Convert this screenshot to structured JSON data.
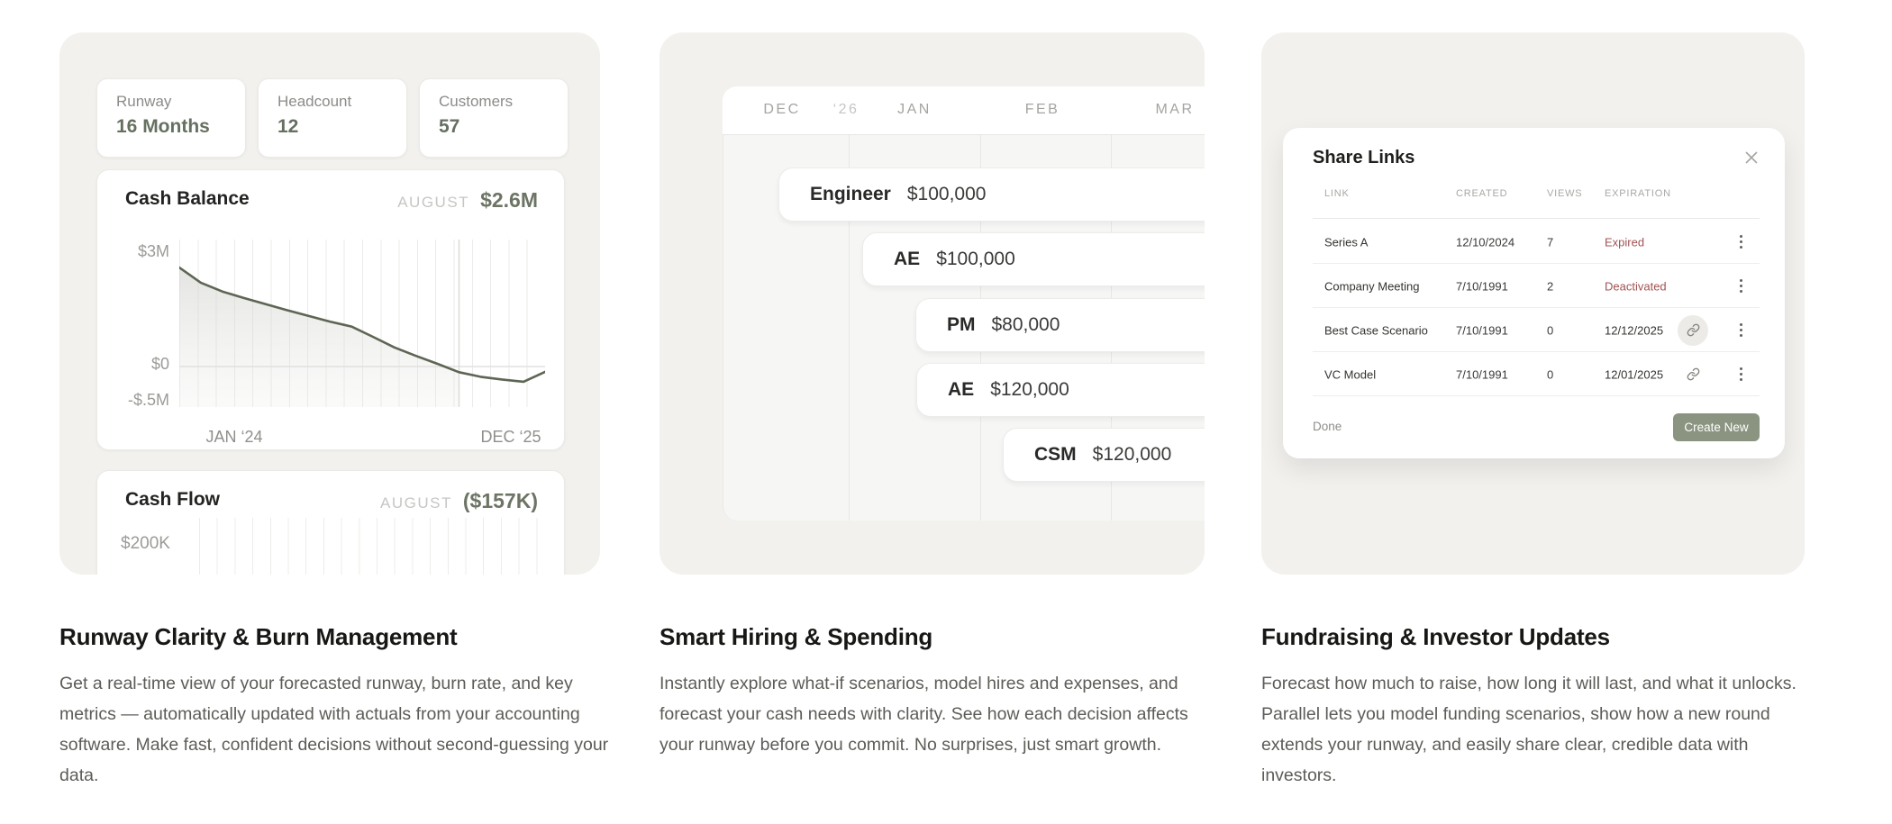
{
  "colors": {
    "accent_green": "#6c7464",
    "button_green": "#8b9481",
    "negative_red": "#a25353",
    "card_background": "#f2f1ee"
  },
  "cards": {
    "runway": {
      "stats": [
        {
          "label": "Runway",
          "value": "16 Months"
        },
        {
          "label": "Headcount",
          "value": "12"
        },
        {
          "label": "Customers",
          "value": "57"
        }
      ]
    },
    "hiring": {
      "months": [
        "DEC",
        "‘26",
        "JAN",
        "FEB",
        "MAR"
      ],
      "rows": [
        {
          "role": "Engineer",
          "salary": "$100,000"
        },
        {
          "role": "AE",
          "salary": "$100,000"
        },
        {
          "role": "PM",
          "salary": "$80,000"
        },
        {
          "role": "AE",
          "salary": "$120,000"
        },
        {
          "role": "CSM",
          "salary": "$120,000"
        }
      ]
    },
    "fundraising": {
      "share_links": {
        "title": "Share Links",
        "close_icon": "x-icon",
        "columns": [
          "LINK",
          "CREATED",
          "VIEWS",
          "EXPIRATION"
        ],
        "rows": [
          {
            "link": "Series A",
            "created": "12/10/2024",
            "views": "7",
            "expiration": "Expired",
            "expiration_style": "negative",
            "has_link_icon": false
          },
          {
            "link": "Company Meeting",
            "created": "7/10/1991",
            "views": "2",
            "expiration": "Deactivated",
            "expiration_style": "negative",
            "has_link_icon": false
          },
          {
            "link": "Best Case Scenario",
            "created": "7/10/1991",
            "views": "0",
            "expiration": "12/12/2025",
            "expiration_style": "date",
            "has_link_icon": true,
            "link_icon_highlighted": true
          },
          {
            "link": "VC Model",
            "created": "7/10/1991",
            "views": "0",
            "expiration": "12/01/2025",
            "expiration_style": "date",
            "has_link_icon": true,
            "link_icon_highlighted": false
          }
        ],
        "done_label": "Done",
        "create_label": "Create New"
      }
    }
  },
  "sections": [
    {
      "title": "Runway Clarity & Burn Management",
      "body": "Get a real-time view of your forecasted runway, burn rate, and key metrics — automatically updated with actuals from your accounting software. Make fast, confident decisions without second-guessing your data."
    },
    {
      "title": "Smart Hiring & Spending",
      "body": "Instantly explore what-if scenarios, model hires and expenses, and forecast your cash needs with clarity. See how each decision affects your runway before you commit. No surprises, just smart growth."
    },
    {
      "title": "Fundraising & Investor Updates",
      "body": "Forecast how much to raise, how long it will last, and what it unlocks. Parallel lets you model funding scenarios, show how a new round extends your runway, and easily share clear, credible data with investors."
    }
  ],
  "chart_data": [
    {
      "type": "area",
      "title": "Cash Balance",
      "badge_label": "AUGUST",
      "badge_value": "$2.6M",
      "y_ticks": [
        "$3M",
        "$0",
        "-$.5M"
      ],
      "x_ticks": [
        "JAN ‘24",
        "DEC ‘25"
      ],
      "ylim_millions": [
        -0.6,
        3.1
      ],
      "x_range": [
        "Jan 2024",
        "Dec 2025"
      ],
      "values_millions": [
        2.6,
        2.2,
        1.97,
        1.8,
        1.64,
        1.48,
        1.33,
        1.18,
        1.05,
        0.78,
        0.5,
        0.28,
        0.07,
        -0.15,
        -0.27,
        -0.34,
        -0.4,
        -0.14
      ],
      "forecast_marker_index": 13,
      "grid": "vertical gridlines, horizontal zero line",
      "legend": "none"
    },
    {
      "type": "bar",
      "title": "Cash Flow",
      "badge_label": "AUGUST",
      "badge_value": "($157K)",
      "y_ticks": [
        "$200K"
      ],
      "values": [],
      "note": "chart body clipped by card edge; only vertical gridline columns visible",
      "grid": "vertical gridlines",
      "legend": "none"
    }
  ]
}
